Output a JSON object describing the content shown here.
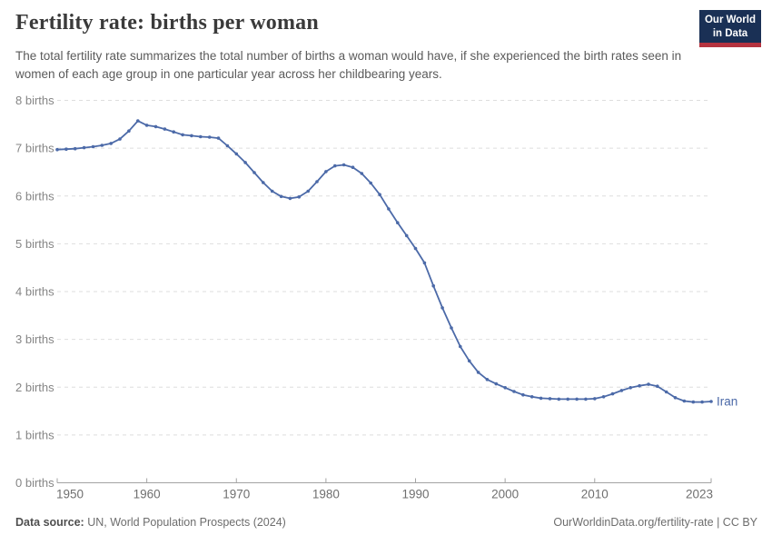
{
  "header": {
    "title": "Fertility rate: births per woman",
    "subtitle": "The total fertility rate summarizes the total number of births a woman would have, if she experienced the birth rates seen in women of each age group in one particular year across her childbearing years."
  },
  "logo": {
    "line1": "Our World",
    "line2": "in Data",
    "bg_color": "#1a3055",
    "accent_color": "#b5333f"
  },
  "chart_data": {
    "type": "line",
    "title": "Fertility rate: births per woman",
    "xlabel": "",
    "ylabel": "births per woman",
    "entity": "Iran",
    "ylim": [
      0,
      8
    ],
    "yticks": [
      0,
      1,
      2,
      3,
      4,
      5,
      6,
      7,
      8
    ],
    "ytick_label_suffix": " births",
    "xticks": [
      1950,
      1960,
      1970,
      1980,
      1990,
      2000,
      2010,
      2023
    ],
    "grid": "horizontal-dashed",
    "legend_position": "end-of-line",
    "x": [
      1950,
      1951,
      1952,
      1953,
      1954,
      1955,
      1956,
      1957,
      1958,
      1959,
      1960,
      1961,
      1962,
      1963,
      1964,
      1965,
      1966,
      1967,
      1968,
      1969,
      1970,
      1971,
      1972,
      1973,
      1974,
      1975,
      1976,
      1977,
      1978,
      1979,
      1980,
      1981,
      1982,
      1983,
      1984,
      1985,
      1986,
      1987,
      1988,
      1989,
      1990,
      1991,
      1992,
      1993,
      1994,
      1995,
      1996,
      1997,
      1998,
      1999,
      2000,
      2001,
      2002,
      2003,
      2004,
      2005,
      2006,
      2007,
      2008,
      2009,
      2010,
      2011,
      2012,
      2013,
      2014,
      2015,
      2016,
      2017,
      2018,
      2019,
      2020,
      2021,
      2022,
      2023
    ],
    "series": [
      {
        "name": "Iran",
        "color": "#4c6aa8",
        "values": [
          6.97,
          6.98,
          6.99,
          7.01,
          7.03,
          7.06,
          7.1,
          7.19,
          7.36,
          7.57,
          7.48,
          7.45,
          7.4,
          7.34,
          7.28,
          7.26,
          7.24,
          7.23,
          7.21,
          7.05,
          6.88,
          6.7,
          6.49,
          6.28,
          6.1,
          5.99,
          5.95,
          5.98,
          6.1,
          6.3,
          6.51,
          6.63,
          6.65,
          6.6,
          6.47,
          6.27,
          6.03,
          5.73,
          5.44,
          5.17,
          4.9,
          4.6,
          4.12,
          3.66,
          3.24,
          2.85,
          2.55,
          2.31,
          2.16,
          2.07,
          1.99,
          1.91,
          1.84,
          1.8,
          1.77,
          1.76,
          1.75,
          1.75,
          1.75,
          1.75,
          1.76,
          1.8,
          1.86,
          1.93,
          1.99,
          2.03,
          2.06,
          2.02,
          1.9,
          1.78,
          1.71,
          1.69,
          1.69,
          1.7
        ]
      }
    ]
  },
  "colors": {
    "line": "#4c6aa8",
    "gridline": "#dedede",
    "axis": "#a3a3a3",
    "ytick_label": "#858585",
    "xtick_label": "#6f6f6f"
  },
  "footer": {
    "source_label": "Data source:",
    "source_value": " UN, World Population Prospects (2024)",
    "link": "OurWorldinData.org/fertility-rate",
    "license": " | CC BY"
  }
}
